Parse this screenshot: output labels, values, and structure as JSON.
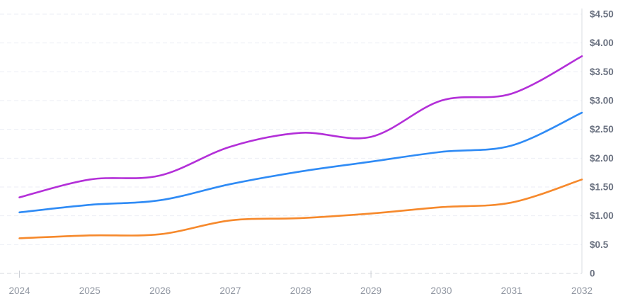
{
  "chart_data": {
    "type": "line",
    "title": "",
    "xlabel": "",
    "ylabel": "",
    "legend": "none",
    "grid": "horizontal-dashed",
    "y_axis_position": "right",
    "x": [
      2024,
      2025,
      2026,
      2027,
      2028,
      2029,
      2030,
      2031,
      2032
    ],
    "x_tick_labels": [
      "2024",
      "2025",
      "2026",
      "2027",
      "2028",
      "2029",
      "2030",
      "2031",
      "2032"
    ],
    "x_axis_tick_marks_at": [
      2024,
      2029
    ],
    "ylim": [
      0,
      4.5
    ],
    "y_ticks": [
      {
        "value": 0,
        "label": "0"
      },
      {
        "value": 0.5,
        "label": "$0.5"
      },
      {
        "value": 1.0,
        "label": "$1.00"
      },
      {
        "value": 1.5,
        "label": "$1.50"
      },
      {
        "value": 2.0,
        "label": "$2.00"
      },
      {
        "value": 2.5,
        "label": "$2.50"
      },
      {
        "value": 3.0,
        "label": "$3.00"
      },
      {
        "value": 3.5,
        "label": "$3.50"
      },
      {
        "value": 4.0,
        "label": "$4.00"
      },
      {
        "value": 4.5,
        "label": "$4.50"
      }
    ],
    "series": [
      {
        "name": "purple-series",
        "color": "#b32fd8",
        "values": [
          1.32,
          1.63,
          1.7,
          2.2,
          2.44,
          2.37,
          3.0,
          3.12,
          3.77
        ]
      },
      {
        "name": "blue-series",
        "color": "#2f8bf5",
        "values": [
          1.06,
          1.19,
          1.27,
          1.55,
          1.77,
          1.94,
          2.11,
          2.22,
          2.79
        ]
      },
      {
        "name": "orange-series",
        "color": "#f6892c",
        "values": [
          0.61,
          0.66,
          0.68,
          0.92,
          0.96,
          1.04,
          1.15,
          1.23,
          1.63
        ]
      }
    ],
    "colors": {
      "background": "#ffffff",
      "gridline": "#ebeef5",
      "zero_line": "#d6d9df",
      "axis_line": "#dadde2",
      "tick_mark": "#cdd0d6",
      "y_label": "#6a7180",
      "x_label": "#9096a1"
    }
  }
}
